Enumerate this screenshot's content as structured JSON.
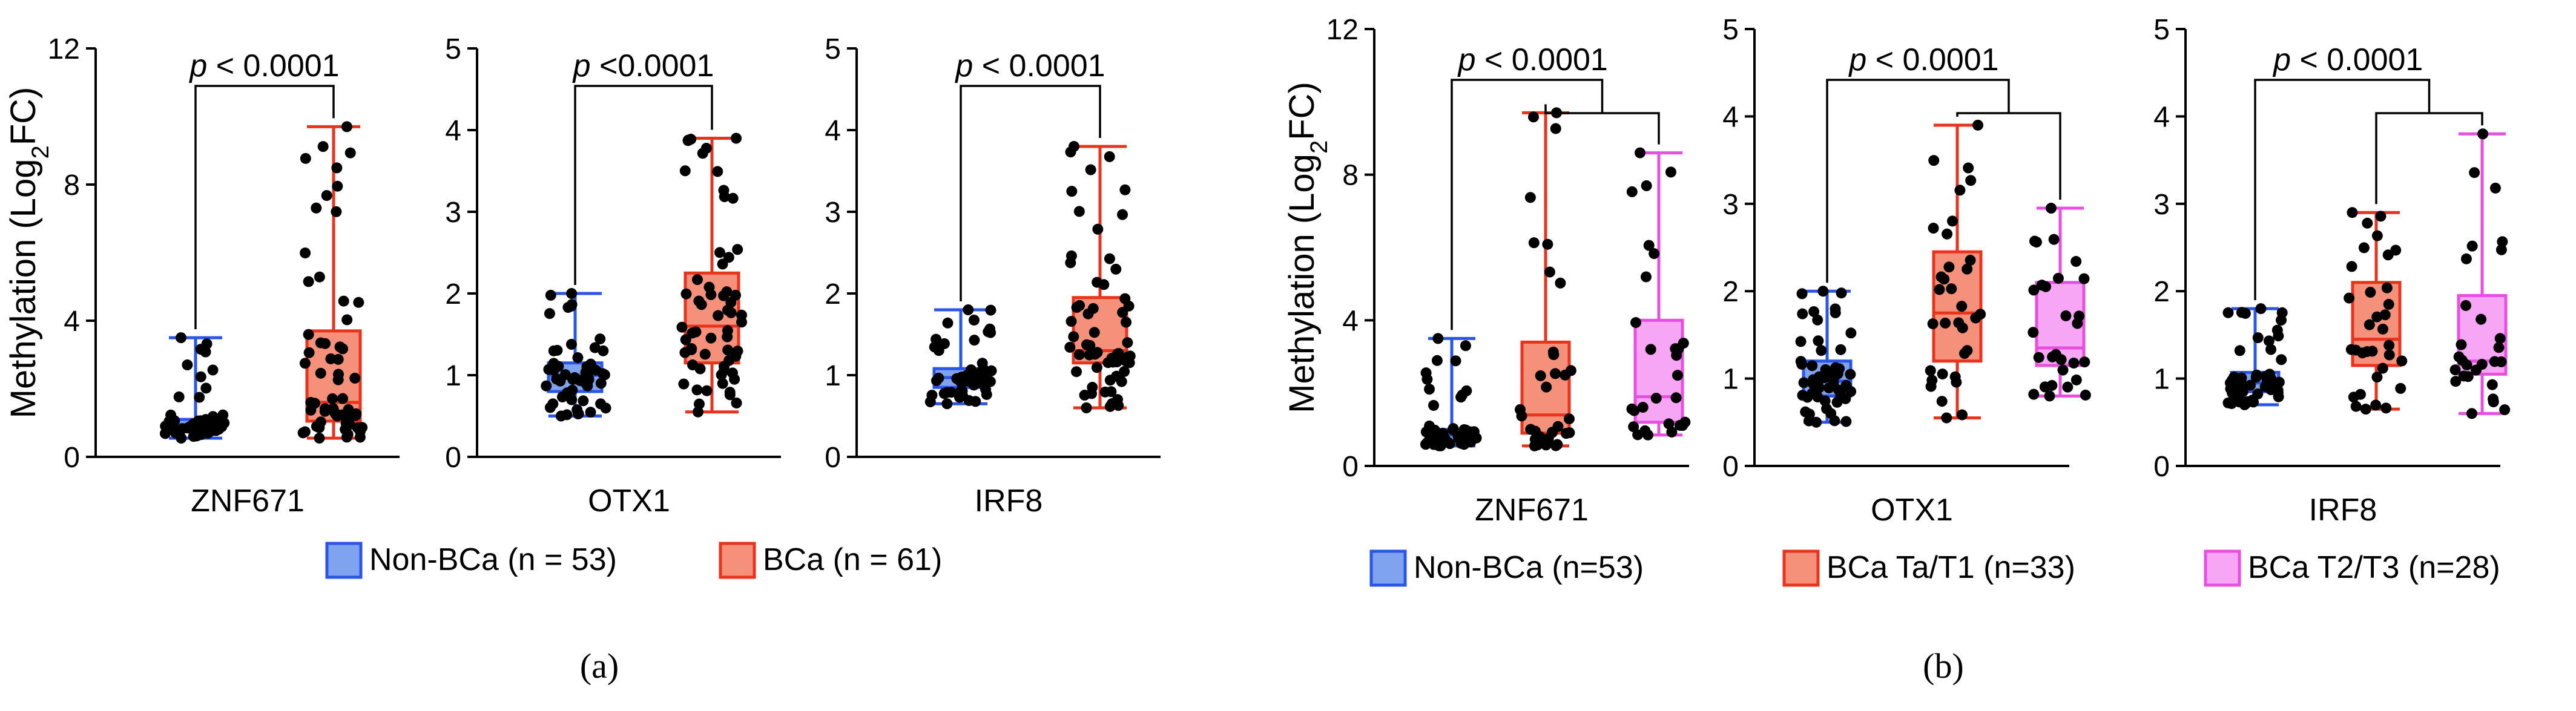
{
  "colors": {
    "nonbca_fill": "#7fa3ee",
    "nonbca_stroke": "#2a55e6",
    "ta_fill": "#f5917a",
    "ta_stroke": "#e8341c",
    "t2_fill": "#f7a6f5",
    "t2_stroke": "#e84ee0",
    "dot": "#000000",
    "axis": "#000000"
  },
  "chart_data": [
    {
      "panel": "(a)",
      "type": "box",
      "ylabel_main": "Methylation (Log",
      "ylabel_sub": "2",
      "ylabel_end": "FC)",
      "legend": [
        {
          "key": "nonbca",
          "label": "Non-BCa (n = 53)"
        },
        {
          "key": "ta",
          "label": "BCa (n = 61)"
        }
      ],
      "subplots": [
        {
          "gene": "ZNF671",
          "ylim": [
            0,
            12
          ],
          "yticks": [
            "0",
            "4",
            "8",
            "12"
          ],
          "pvalue_prefix": "p",
          "pvalue_text": " < 0.0001",
          "groups": [
            {
              "key": "nonbca",
              "n": 53,
              "min": 0.55,
              "q1": 0.8,
              "median": 0.95,
              "q3": 1.1,
              "max": 3.5
            },
            {
              "key": "ta",
              "n": 61,
              "min": 0.55,
              "q1": 1.05,
              "median": 1.6,
              "q3": 3.7,
              "max": 9.7
            }
          ]
        },
        {
          "gene": "OTX1",
          "ylim": [
            0,
            5
          ],
          "yticks": [
            "0",
            "1",
            "2",
            "3",
            "4",
            "5"
          ],
          "pvalue_prefix": "p",
          "pvalue_text": " <0.0001",
          "groups": [
            {
              "key": "nonbca",
              "n": 53,
              "min": 0.5,
              "q1": 0.8,
              "median": 1.0,
              "q3": 1.15,
              "max": 2.0
            },
            {
              "key": "ta",
              "n": 61,
              "min": 0.55,
              "q1": 1.15,
              "median": 1.6,
              "q3": 2.25,
              "max": 3.9
            }
          ]
        },
        {
          "gene": "IRF8",
          "ylim": [
            0,
            5
          ],
          "yticks": [
            "0",
            "1",
            "2",
            "3",
            "4",
            "5"
          ],
          "pvalue_prefix": "p",
          "pvalue_text": " < 0.0001",
          "groups": [
            {
              "key": "nonbca",
              "n": 53,
              "min": 0.65,
              "q1": 0.85,
              "median": 0.97,
              "q3": 1.08,
              "max": 1.8
            },
            {
              "key": "ta",
              "n": 61,
              "min": 0.6,
              "q1": 1.15,
              "median": 1.3,
              "q3": 1.95,
              "max": 3.8
            }
          ]
        }
      ]
    },
    {
      "panel": "(b)",
      "type": "box",
      "ylabel_main": "Methylation (Log",
      "ylabel_sub": "2",
      "ylabel_end": "FC)",
      "legend": [
        {
          "key": "nonbca",
          "label": "Non-BCa (n=53)"
        },
        {
          "key": "ta",
          "label": "BCa Ta/T1 (n=33)"
        },
        {
          "key": "t2",
          "label": "BCa T2/T3 (n=28)"
        }
      ],
      "subplots": [
        {
          "gene": "ZNF671",
          "ylim": [
            0,
            12
          ],
          "yticks": [
            "0",
            "4",
            "8",
            "12"
          ],
          "pvalue_prefix": "p",
          "pvalue_text": " < 0.0001",
          "groups": [
            {
              "key": "nonbca",
              "n": 53,
              "min": 0.55,
              "q1": 0.7,
              "median": 0.85,
              "q3": 1.0,
              "max": 3.5
            },
            {
              "key": "ta",
              "n": 33,
              "min": 0.55,
              "q1": 0.9,
              "median": 1.4,
              "q3": 3.4,
              "max": 9.7
            },
            {
              "key": "t2",
              "n": 28,
              "min": 0.85,
              "q1": 1.2,
              "median": 1.9,
              "q3": 4.0,
              "max": 8.6
            }
          ]
        },
        {
          "gene": "OTX1",
          "ylim": [
            0,
            5
          ],
          "yticks": [
            "0",
            "1",
            "2",
            "3",
            "4",
            "5"
          ],
          "pvalue_prefix": "p",
          "pvalue_text": " < 0.0001",
          "groups": [
            {
              "key": "nonbca",
              "n": 53,
              "min": 0.5,
              "q1": 0.8,
              "median": 0.97,
              "q3": 1.2,
              "max": 2.0
            },
            {
              "key": "ta",
              "n": 33,
              "min": 0.55,
              "q1": 1.2,
              "median": 1.75,
              "q3": 2.45,
              "max": 3.9
            },
            {
              "key": "t2",
              "n": 28,
              "min": 0.8,
              "q1": 1.15,
              "median": 1.35,
              "q3": 2.1,
              "max": 2.95
            }
          ]
        },
        {
          "gene": "IRF8",
          "ylim": [
            0,
            5
          ],
          "yticks": [
            "0",
            "1",
            "2",
            "3",
            "4",
            "5"
          ],
          "pvalue_prefix": "p",
          "pvalue_text": " < 0.0001",
          "groups": [
            {
              "key": "nonbca",
              "n": 53,
              "min": 0.7,
              "q1": 0.85,
              "median": 0.95,
              "q3": 1.07,
              "max": 1.8
            },
            {
              "key": "ta",
              "n": 33,
              "min": 0.65,
              "q1": 1.15,
              "median": 1.45,
              "q3": 2.1,
              "max": 2.9
            },
            {
              "key": "t2",
              "n": 28,
              "min": 0.6,
              "q1": 1.05,
              "median": 1.2,
              "q3": 1.95,
              "max": 3.8
            }
          ]
        }
      ]
    }
  ]
}
